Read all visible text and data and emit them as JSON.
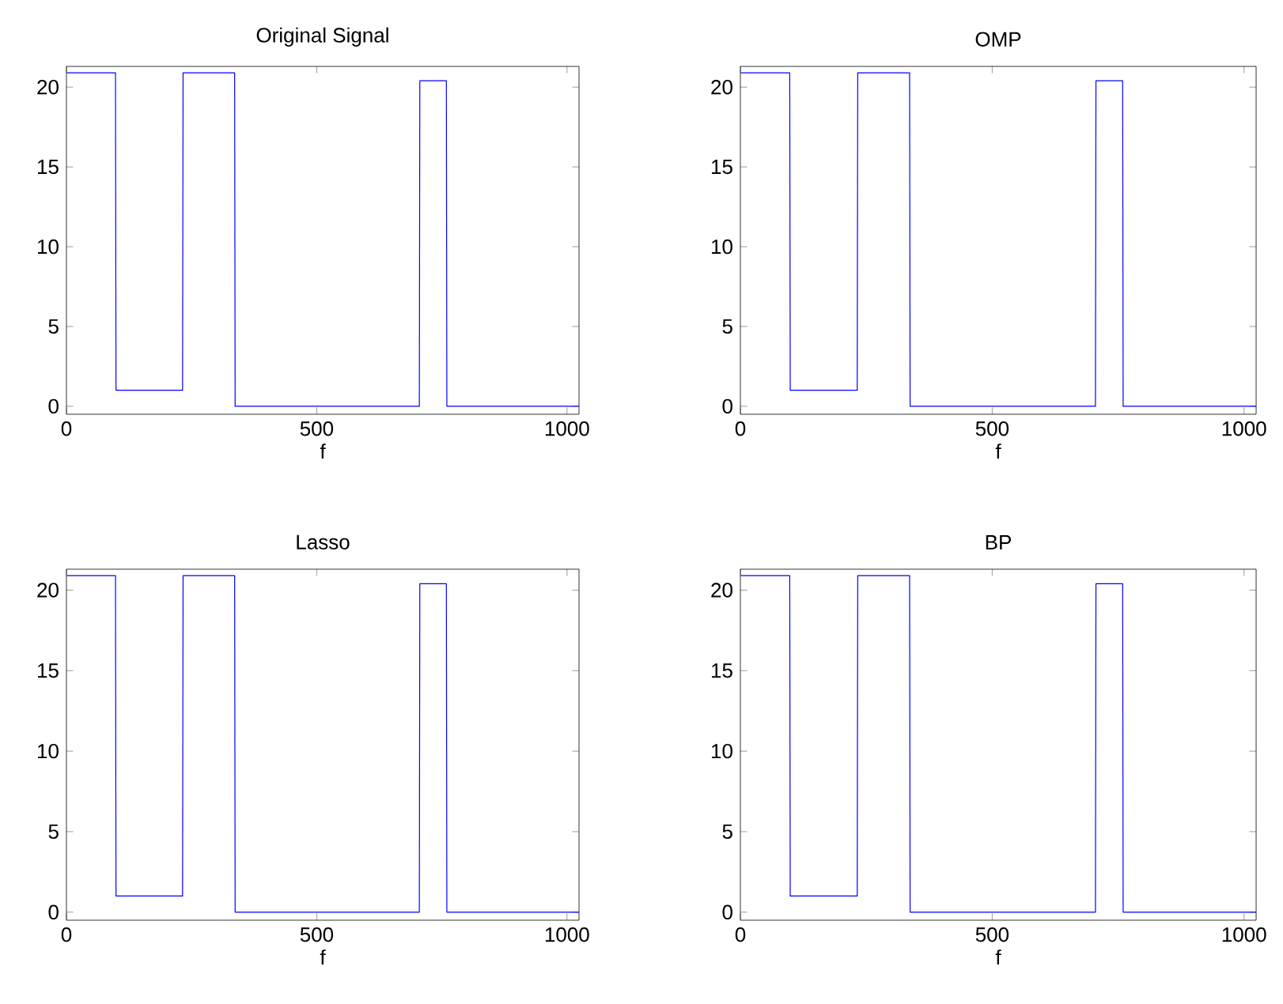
{
  "chart_data": [
    {
      "type": "line",
      "title": "Original Signal",
      "xlabel": "f",
      "color": "#0000ff",
      "x": [
        1,
        98,
        99,
        232,
        233,
        336,
        337,
        705,
        706,
        759,
        760,
        1024
      ],
      "values": [
        20.9,
        20.9,
        1,
        1,
        20.9,
        20.9,
        0,
        0,
        20.4,
        20.4,
        0,
        0
      ],
      "xlim": [
        0,
        1024
      ],
      "ylim": [
        -0.5,
        21.3
      ],
      "xticks": [
        0,
        500,
        1000
      ],
      "yticks": [
        0,
        5,
        10,
        15,
        20
      ],
      "grid": false
    },
    {
      "type": "line",
      "title": "OMP",
      "xlabel": "f",
      "color": "#0000ff",
      "x": [
        1,
        98,
        99,
        232,
        233,
        336,
        337,
        705,
        706,
        759,
        760,
        1024
      ],
      "values": [
        20.9,
        20.9,
        1,
        1,
        20.9,
        20.9,
        0,
        0,
        20.4,
        20.4,
        0,
        0
      ],
      "xlim": [
        0,
        1024
      ],
      "ylim": [
        -0.5,
        21.3
      ],
      "xticks": [
        0,
        500,
        1000
      ],
      "yticks": [
        0,
        5,
        10,
        15,
        20
      ],
      "grid": false
    },
    {
      "type": "line",
      "title": "Lasso",
      "xlabel": "f",
      "color": "#0000ff",
      "x": [
        1,
        98,
        99,
        232,
        233,
        336,
        337,
        705,
        706,
        759,
        760,
        1024
      ],
      "values": [
        20.9,
        20.9,
        1,
        1,
        20.9,
        20.9,
        0,
        0,
        20.4,
        20.4,
        0,
        0
      ],
      "xlim": [
        0,
        1024
      ],
      "ylim": [
        -0.5,
        21.3
      ],
      "xticks": [
        0,
        500,
        1000
      ],
      "yticks": [
        0,
        5,
        10,
        15,
        20
      ],
      "grid": false
    },
    {
      "type": "line",
      "title": "BP",
      "xlabel": "f",
      "color": "#0000ff",
      "x": [
        1,
        98,
        99,
        232,
        233,
        336,
        337,
        705,
        706,
        759,
        760,
        1024
      ],
      "values": [
        20.9,
        20.9,
        1,
        1,
        20.9,
        20.9,
        0,
        0,
        20.4,
        20.4,
        0,
        0
      ],
      "xlim": [
        0,
        1024
      ],
      "ylim": [
        -0.5,
        21.3
      ],
      "xticks": [
        0,
        500,
        1000
      ],
      "yticks": [
        0,
        5,
        10,
        15,
        20
      ],
      "grid": false
    }
  ]
}
